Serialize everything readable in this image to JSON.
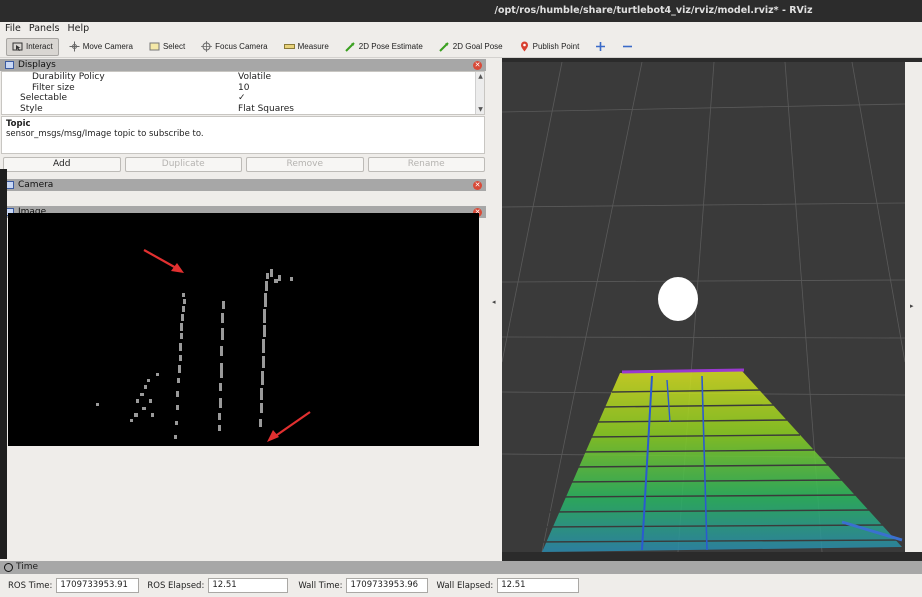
{
  "window": {
    "title": "/opt/ros/humble/share/turtlebot4_viz/rviz/model.rviz* - RViz"
  },
  "menu": {
    "items": [
      "File",
      "Panels",
      "Help"
    ]
  },
  "toolbar": {
    "tools": [
      {
        "label": "Interact",
        "icon": "cursor-icon",
        "active": true
      },
      {
        "label": "Move Camera",
        "icon": "move-camera-icon"
      },
      {
        "label": "Select",
        "icon": "select-icon"
      },
      {
        "label": "Focus Camera",
        "icon": "focus-camera-icon"
      },
      {
        "label": "Measure",
        "icon": "measure-icon"
      },
      {
        "label": "2D Pose Estimate",
        "icon": "pose-estimate-icon"
      },
      {
        "label": "2D Goal Pose",
        "icon": "goal-pose-icon"
      },
      {
        "label": "Publish Point",
        "icon": "publish-point-icon"
      }
    ],
    "add_tool_icon": "plus-icon",
    "remove_tool_icon": "minus-icon"
  },
  "displays_panel": {
    "title": "Displays",
    "properties": [
      {
        "key": "Durability Policy",
        "value": "Volatile",
        "indent": 2
      },
      {
        "key": "Filter size",
        "value": "10",
        "indent": 2
      },
      {
        "key": "Selectable",
        "value": "✓",
        "indent": 1
      },
      {
        "key": "Style",
        "value": "Flat Squares",
        "indent": 1
      }
    ],
    "description_title": "Topic",
    "description_text": "sensor_msgs/msg/Image topic to subscribe to.",
    "buttons": {
      "add": "Add",
      "duplicate": "Duplicate",
      "remove": "Remove",
      "rename": "Rename"
    }
  },
  "camera_panel": {
    "title": "Camera"
  },
  "image_panel": {
    "title": "Image"
  },
  "time_panel": {
    "title": "Time",
    "ros_time_label": "ROS Time:",
    "ros_time": "1709733953.91",
    "ros_elapsed_label": "ROS Elapsed:",
    "ros_elapsed": "12.51",
    "wall_time_label": "Wall Time:",
    "wall_time": "1709733953.96",
    "wall_elapsed_label": "Wall Elapsed:",
    "wall_elapsed": "12.51"
  },
  "colors": {
    "accent_red": "#e23030",
    "close_red": "#d84a38",
    "panel_header": "#a7a7a7",
    "viewport_bg": "#3a3a3a"
  }
}
